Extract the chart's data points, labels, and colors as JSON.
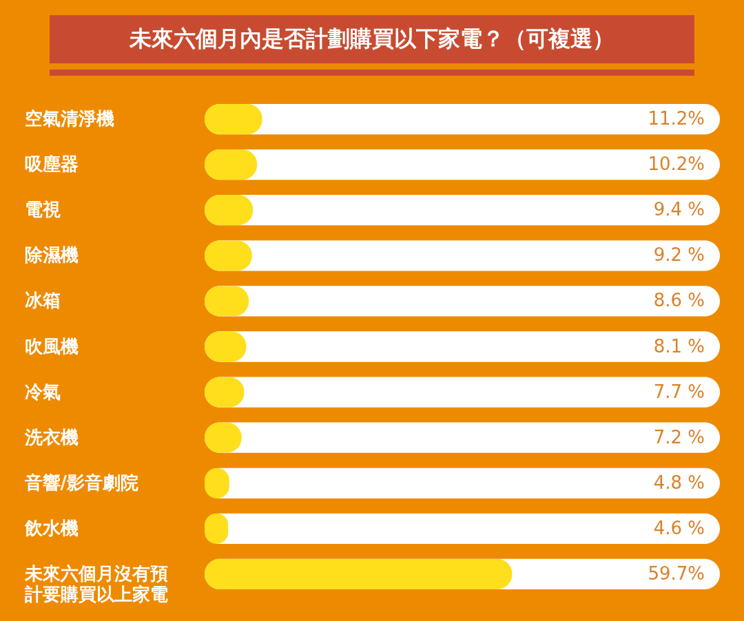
{
  "chart_data": {
    "type": "bar",
    "orientation": "horizontal",
    "title": "未來六個月內是否計劃購買以下家電？（可複選）",
    "categories": [
      "空氣清淨機",
      "吸塵器",
      "電視",
      "除濕機",
      "冰箱",
      "吹風機",
      "冷氣",
      "洗衣機",
      "音響/影音劇院",
      "飲水機",
      "未來六個月沒有預計要購買以上家電"
    ],
    "values": [
      11.2,
      10.2,
      9.4,
      9.2,
      8.6,
      8.1,
      7.7,
      7.2,
      4.8,
      4.6,
      59.7
    ],
    "value_labels": [
      "11.2%",
      "10.2%",
      "9.4 %",
      "9.2 %",
      "8.6 %",
      "8.1 %",
      "7.7 %",
      "7.2 %",
      "4.8 %",
      "4.6 %",
      "59.7%"
    ],
    "color": "#ffde1c",
    "xlim": [
      0,
      100
    ],
    "tick_labels": "y"
  }
}
